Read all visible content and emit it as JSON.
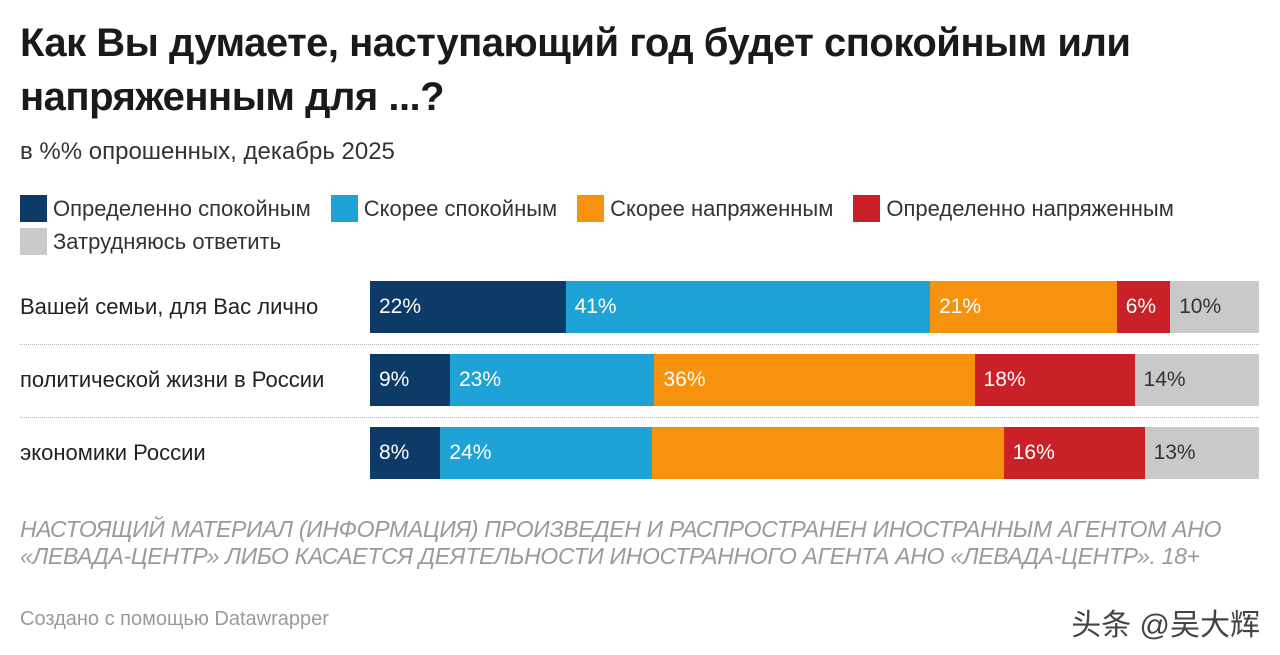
{
  "header": {
    "title": "Как Вы думаете, наступающий год будет спокойным или напряженным для ...?",
    "subtitle": "в %% опрошенных, декабрь 2025"
  },
  "chart_data": {
    "type": "bar",
    "orientation": "horizontal",
    "stacked": true,
    "categories": [
      "Вашей семьи, для Вас лично",
      "политической жизни в России",
      "экономики России"
    ],
    "series": [
      {
        "name": "Определенно спокойным",
        "color": "#0d3a66",
        "text_color": "#ffffff",
        "values": [
          22,
          9,
          8
        ],
        "labels": [
          "22%",
          "9%",
          "8%"
        ]
      },
      {
        "name": "Скорее спокойным",
        "color": "#1fa3d6",
        "text_color": "#ffffff",
        "values": [
          41,
          23,
          24
        ],
        "labels": [
          "41%",
          "23%",
          "24%"
        ]
      },
      {
        "name": "Скорее напряженным",
        "color": "#f7920f",
        "text_color": "#ffffff",
        "values": [
          21,
          36,
          40
        ],
        "labels": [
          "21%",
          "36%",
          ""
        ]
      },
      {
        "name": "Определенно напряженным",
        "color": "#c92127",
        "text_color": "#ffffff",
        "values": [
          6,
          18,
          16
        ],
        "labels": [
          "6%",
          "18%",
          "16%"
        ]
      },
      {
        "name": "Затрудняюсь ответить",
        "color": "#c9c9c9",
        "text_color": "#333333",
        "values": [
          10,
          14,
          13
        ],
        "labels": [
          "10%",
          "14%",
          "13%"
        ]
      }
    ],
    "legend_position": "top"
  },
  "footer": {
    "disclaimer": "НАСТОЯЩИЙ МАТЕРИАЛ (ИНФОРМАЦИЯ) ПРОИЗВЕДЕН И РАСПРОСТРАНЕН ИНОСТРАННЫМ АГЕНТОМ АНО «ЛЕВАДА-ЦЕНТР» ЛИБО КАСАЕТСЯ ДЕЯТЕЛЬНОСТИ ИНОСТРАННОГО АГЕНТА АНО «ЛЕВАДА-ЦЕНТР». 18+",
    "credit": "Создано с помощью Datawrapper",
    "watermark": "头条 @吴大辉"
  }
}
